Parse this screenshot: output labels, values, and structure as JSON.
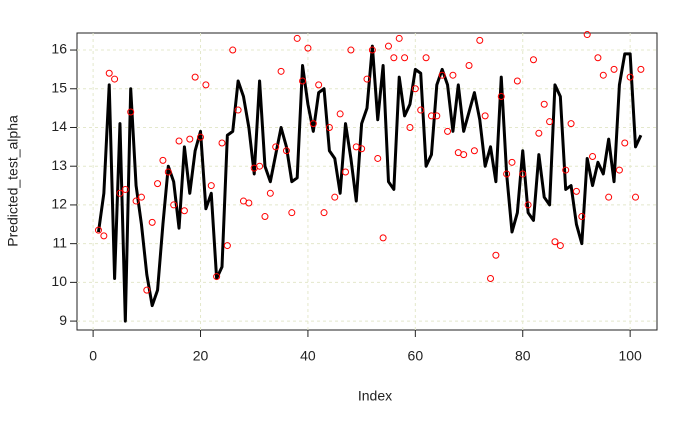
{
  "chart_data": {
    "type": "line",
    "xlabel": "Index",
    "ylabel": "Predicted_test_alpha",
    "x": [
      1,
      2,
      3,
      4,
      5,
      6,
      7,
      8,
      9,
      10,
      11,
      12,
      13,
      14,
      15,
      16,
      17,
      18,
      19,
      20,
      21,
      22,
      23,
      24,
      25,
      26,
      27,
      28,
      29,
      30,
      31,
      32,
      33,
      34,
      35,
      36,
      37,
      38,
      39,
      40,
      41,
      42,
      43,
      44,
      45,
      46,
      47,
      48,
      49,
      50,
      51,
      52,
      53,
      54,
      55,
      56,
      57,
      58,
      59,
      60,
      61,
      62,
      63,
      64,
      65,
      66,
      67,
      68,
      69,
      70,
      71,
      72,
      73,
      74,
      75,
      76,
      77,
      78,
      79,
      80,
      81,
      82,
      83,
      84,
      85,
      86,
      87,
      88,
      89,
      90,
      91,
      92,
      93,
      94,
      95,
      96,
      97,
      98,
      99,
      100,
      101,
      102
    ],
    "series": [
      {
        "color": "#000000",
        "style": "line",
        "values": [
          11.3,
          12.3,
          15.1,
          10.1,
          14.1,
          9.0,
          15.0,
          12.5,
          11.5,
          10.2,
          9.4,
          9.8,
          11.5,
          13.0,
          12.6,
          11.4,
          13.5,
          12.3,
          13.4,
          13.9,
          11.9,
          12.3,
          10.1,
          10.4,
          13.8,
          13.9,
          15.2,
          14.8,
          14.0,
          12.8,
          15.2,
          13.0,
          12.6,
          13.3,
          14.0,
          13.5,
          12.6,
          12.7,
          15.6,
          14.6,
          13.9,
          14.9,
          15.0,
          13.4,
          13.2,
          12.3,
          14.1,
          13.2,
          12.1,
          14.1,
          14.5,
          16.1,
          14.2,
          15.6,
          12.6,
          12.4,
          15.3,
          14.3,
          14.6,
          15.5,
          15.4,
          13.0,
          13.3,
          15.1,
          15.5,
          15.1,
          13.9,
          15.1,
          13.9,
          14.4,
          14.9,
          14.2,
          13.0,
          13.5,
          12.6,
          15.3,
          12.8,
          11.3,
          11.8,
          13.4,
          11.8,
          11.6,
          13.3,
          12.2,
          12.0,
          15.1,
          14.8,
          12.4,
          12.5,
          11.5,
          11.0,
          13.2,
          12.5,
          13.1,
          12.8,
          13.7,
          12.6,
          15.1,
          15.9,
          15.9,
          13.5,
          13.8
        ]
      },
      {
        "color": "#ff0000",
        "style": "points",
        "values": [
          11.35,
          11.2,
          15.4,
          15.25,
          12.3,
          12.4,
          14.4,
          12.1,
          12.2,
          9.8,
          11.55,
          12.55,
          13.15,
          12.85,
          12.0,
          13.65,
          11.85,
          13.7,
          15.3,
          13.75,
          15.1,
          12.5,
          10.15,
          13.6,
          10.95,
          16.0,
          14.45,
          12.1,
          12.05,
          12.95,
          13.0,
          11.7,
          12.3,
          13.5,
          15.45,
          13.4,
          11.8,
          16.3,
          15.2,
          16.05,
          14.1,
          15.1,
          11.8,
          14.0,
          12.2,
          14.35,
          12.85,
          16.0,
          13.5,
          13.45,
          15.25,
          16.0,
          13.2,
          11.15,
          16.1,
          15.8,
          16.3,
          15.8,
          14.0,
          15.0,
          14.45,
          15.8,
          14.3,
          14.3,
          15.35,
          13.9,
          15.35,
          13.35,
          13.3,
          15.6,
          13.4,
          16.25,
          14.3,
          10.1,
          10.7,
          14.8,
          12.8,
          13.1,
          15.2,
          12.8,
          12.0,
          15.75,
          13.85,
          14.6,
          14.15,
          11.05,
          10.95,
          12.9,
          14.1,
          12.35,
          11.7,
          16.4,
          13.25,
          15.8,
          15.35,
          12.2,
          15.5,
          12.9,
          13.6,
          15.3,
          12.2,
          15.5
        ]
      }
    ],
    "xlim": [
      -3,
      105
    ],
    "ylim": [
      8.77,
      16.44
    ],
    "xticks": [
      0,
      20,
      40,
      60,
      80,
      100
    ],
    "yticks": [
      9,
      10,
      11,
      12,
      13,
      14,
      15,
      16
    ],
    "grid": true
  }
}
